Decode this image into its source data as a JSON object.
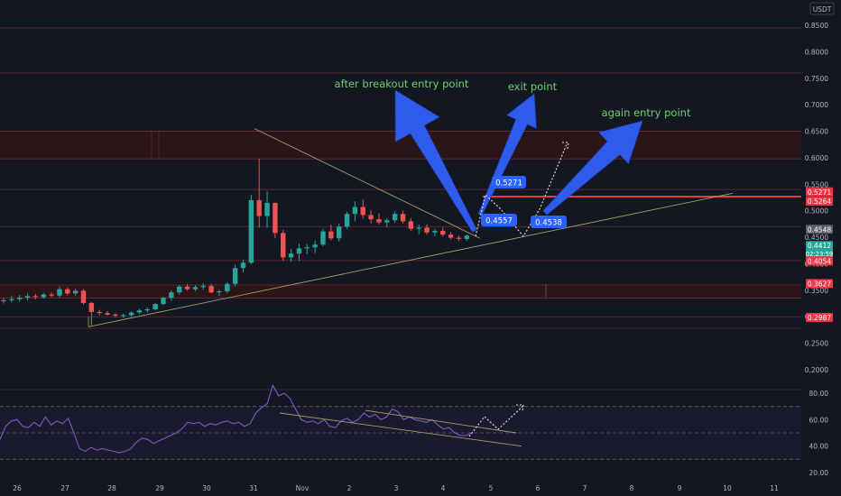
{
  "chart_data": [
    {
      "type": "candlestick",
      "currency_label": "USDT",
      "x_tick_labels": [
        "26",
        "27",
        "28",
        "29",
        "30",
        "31",
        "Nov",
        "2",
        "3",
        "4",
        "5",
        "6",
        "7",
        "8",
        "9",
        "10",
        "11"
      ],
      "y_tick_labels": [
        "0.8500",
        "0.8000",
        "0.7500",
        "0.7000",
        "0.6500",
        "0.6000",
        "0.5500",
        "0.5000",
        "0.4500",
        "0.4000",
        "0.3500",
        "0.3000",
        "0.2500",
        "0.2000"
      ],
      "ylim": [
        0.18,
        0.9
      ],
      "candles": [
        {
          "o": 0.33,
          "h": 0.336,
          "l": 0.325,
          "c": 0.331
        },
        {
          "o": 0.331,
          "h": 0.339,
          "l": 0.327,
          "c": 0.333
        },
        {
          "o": 0.333,
          "h": 0.341,
          "l": 0.329,
          "c": 0.336
        },
        {
          "o": 0.336,
          "h": 0.344,
          "l": 0.331,
          "c": 0.339
        },
        {
          "o": 0.339,
          "h": 0.343,
          "l": 0.333,
          "c": 0.337
        },
        {
          "o": 0.337,
          "h": 0.345,
          "l": 0.334,
          "c": 0.342
        },
        {
          "o": 0.342,
          "h": 0.346,
          "l": 0.337,
          "c": 0.34
        },
        {
          "o": 0.34,
          "h": 0.357,
          "l": 0.336,
          "c": 0.352
        },
        {
          "o": 0.352,
          "h": 0.356,
          "l": 0.34,
          "c": 0.344
        },
        {
          "o": 0.344,
          "h": 0.353,
          "l": 0.339,
          "c": 0.349
        },
        {
          "o": 0.349,
          "h": 0.352,
          "l": 0.323,
          "c": 0.326
        },
        {
          "o": 0.326,
          "h": 0.328,
          "l": 0.284,
          "c": 0.309
        },
        {
          "o": 0.309,
          "h": 0.313,
          "l": 0.303,
          "c": 0.307
        },
        {
          "o": 0.307,
          "h": 0.311,
          "l": 0.302,
          "c": 0.304
        },
        {
          "o": 0.304,
          "h": 0.307,
          "l": 0.298,
          "c": 0.302
        },
        {
          "o": 0.302,
          "h": 0.306,
          "l": 0.298,
          "c": 0.303
        },
        {
          "o": 0.303,
          "h": 0.31,
          "l": 0.3,
          "c": 0.308
        },
        {
          "o": 0.308,
          "h": 0.315,
          "l": 0.305,
          "c": 0.312
        },
        {
          "o": 0.312,
          "h": 0.318,
          "l": 0.308,
          "c": 0.314
        },
        {
          "o": 0.314,
          "h": 0.326,
          "l": 0.312,
          "c": 0.324
        },
        {
          "o": 0.324,
          "h": 0.338,
          "l": 0.322,
          "c": 0.336
        },
        {
          "o": 0.336,
          "h": 0.35,
          "l": 0.33,
          "c": 0.346
        },
        {
          "o": 0.346,
          "h": 0.36,
          "l": 0.342,
          "c": 0.357
        },
        {
          "o": 0.357,
          "h": 0.362,
          "l": 0.349,
          "c": 0.352
        },
        {
          "o": 0.352,
          "h": 0.36,
          "l": 0.348,
          "c": 0.356
        },
        {
          "o": 0.356,
          "h": 0.363,
          "l": 0.351,
          "c": 0.358
        },
        {
          "o": 0.358,
          "h": 0.362,
          "l": 0.344,
          "c": 0.346
        },
        {
          "o": 0.346,
          "h": 0.351,
          "l": 0.339,
          "c": 0.348
        },
        {
          "o": 0.348,
          "h": 0.365,
          "l": 0.344,
          "c": 0.362
        },
        {
          "o": 0.362,
          "h": 0.398,
          "l": 0.357,
          "c": 0.392
        },
        {
          "o": 0.392,
          "h": 0.408,
          "l": 0.384,
          "c": 0.402
        },
        {
          "o": 0.402,
          "h": 0.53,
          "l": 0.399,
          "c": 0.52
        },
        {
          "o": 0.52,
          "h": 0.598,
          "l": 0.468,
          "c": 0.49
        },
        {
          "o": 0.49,
          "h": 0.537,
          "l": 0.468,
          "c": 0.515
        },
        {
          "o": 0.515,
          "h": 0.515,
          "l": 0.448,
          "c": 0.458
        },
        {
          "o": 0.458,
          "h": 0.464,
          "l": 0.405,
          "c": 0.412
        },
        {
          "o": 0.412,
          "h": 0.428,
          "l": 0.404,
          "c": 0.419
        },
        {
          "o": 0.419,
          "h": 0.438,
          "l": 0.405,
          "c": 0.429
        },
        {
          "o": 0.429,
          "h": 0.437,
          "l": 0.418,
          "c": 0.431
        },
        {
          "o": 0.431,
          "h": 0.444,
          "l": 0.42,
          "c": 0.436
        },
        {
          "o": 0.436,
          "h": 0.466,
          "l": 0.433,
          "c": 0.461
        },
        {
          "o": 0.461,
          "h": 0.474,
          "l": 0.444,
          "c": 0.448
        },
        {
          "o": 0.448,
          "h": 0.476,
          "l": 0.442,
          "c": 0.47
        },
        {
          "o": 0.47,
          "h": 0.498,
          "l": 0.466,
          "c": 0.494
        },
        {
          "o": 0.494,
          "h": 0.518,
          "l": 0.48,
          "c": 0.507
        },
        {
          "o": 0.507,
          "h": 0.521,
          "l": 0.485,
          "c": 0.492
        },
        {
          "o": 0.492,
          "h": 0.501,
          "l": 0.476,
          "c": 0.484
        },
        {
          "o": 0.484,
          "h": 0.495,
          "l": 0.474,
          "c": 0.478
        },
        {
          "o": 0.478,
          "h": 0.486,
          "l": 0.469,
          "c": 0.482
        },
        {
          "o": 0.482,
          "h": 0.499,
          "l": 0.477,
          "c": 0.494
        },
        {
          "o": 0.494,
          "h": 0.5,
          "l": 0.476,
          "c": 0.48
        },
        {
          "o": 0.48,
          "h": 0.486,
          "l": 0.462,
          "c": 0.466
        },
        {
          "o": 0.466,
          "h": 0.474,
          "l": 0.456,
          "c": 0.468
        },
        {
          "o": 0.468,
          "h": 0.474,
          "l": 0.455,
          "c": 0.459
        },
        {
          "o": 0.459,
          "h": 0.466,
          "l": 0.452,
          "c": 0.462
        },
        {
          "o": 0.462,
          "h": 0.468,
          "l": 0.451,
          "c": 0.455
        },
        {
          "o": 0.455,
          "h": 0.46,
          "l": 0.446,
          "c": 0.449
        },
        {
          "o": 0.449,
          "h": 0.453,
          "l": 0.443,
          "c": 0.447
        },
        {
          "o": 0.447,
          "h": 0.455,
          "l": 0.443,
          "c": 0.453
        }
      ],
      "price_labels": [
        {
          "text": "0.5271",
          "price": 0.5271,
          "color": "#f23645"
        },
        {
          "text": "0.5264",
          "price": 0.5264,
          "color": "#f23645"
        },
        {
          "text": "0.4548",
          "price": 0.4548,
          "color": "#5d606b"
        },
        {
          "text": "0.4412",
          "price": 0.4412,
          "color": "#26a69a",
          "sub": "02:23:59"
        },
        {
          "text": "0.4054",
          "price": 0.4054,
          "color": "#f23645"
        },
        {
          "text": "0.3627",
          "price": 0.3627,
          "color": "#f23645"
        },
        {
          "text": "0.2987",
          "price": 0.2987,
          "color": "#f23645"
        }
      ],
      "annotations": [
        {
          "text": "after breakout entry point",
          "color": "#6fcf6b"
        },
        {
          "text": "exit point",
          "color": "#6fcf6b"
        },
        {
          "text": "again entry point",
          "color": "#6fcf6b"
        }
      ],
      "callouts": [
        "0.5271",
        "0.4557",
        "0.4538"
      ]
    },
    {
      "type": "line",
      "y_tick_labels": [
        "80.00",
        "60.00",
        "40.00",
        "20.00"
      ],
      "ylim": [
        18,
        88
      ],
      "bands": [
        30,
        50,
        70
      ],
      "values": [
        45,
        55,
        59,
        60,
        55,
        54,
        58,
        55,
        62,
        56,
        59,
        57,
        61,
        50,
        38,
        36,
        39,
        37,
        38,
        37,
        36,
        35,
        36,
        38,
        43,
        46,
        45,
        42,
        44,
        46,
        48,
        50,
        53,
        58,
        57,
        58,
        55,
        57,
        56,
        58,
        59,
        57,
        58,
        55,
        57,
        65,
        69,
        72,
        86,
        78,
        80,
        76,
        68,
        60,
        58,
        59,
        57,
        60,
        55,
        54,
        59,
        61,
        58,
        60,
        65,
        62,
        64,
        60,
        62,
        68,
        66,
        60,
        62,
        60,
        59,
        58,
        60,
        56,
        53,
        54,
        50,
        48,
        48,
        50
      ]
    }
  ]
}
